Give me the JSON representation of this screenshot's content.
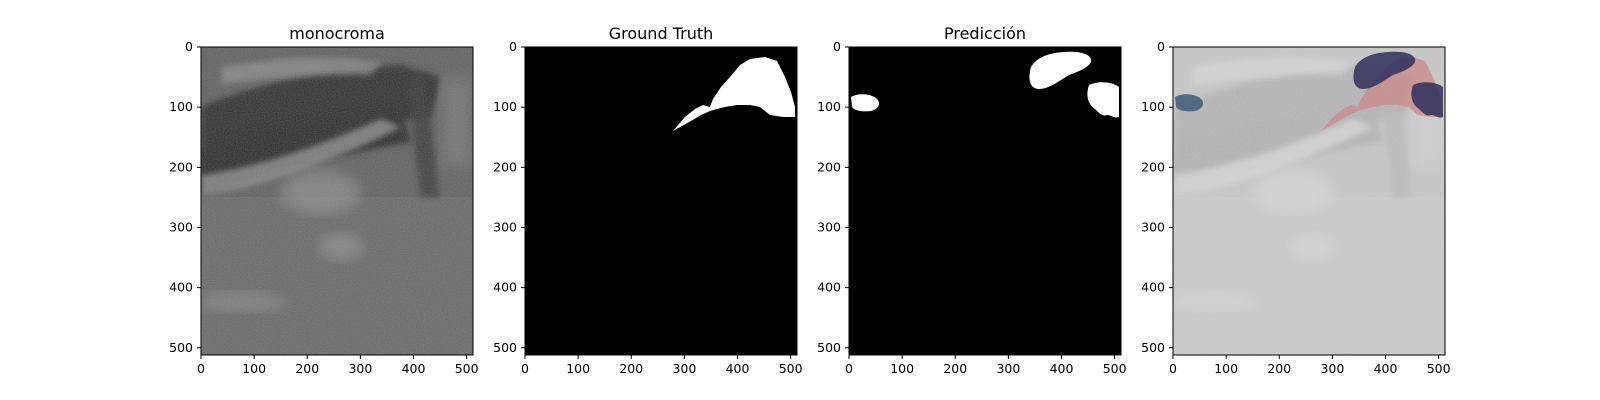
{
  "panels": [
    {
      "title": "monocroma",
      "kind": "ultrasound"
    },
    {
      "title": "Ground Truth",
      "kind": "mask-gt"
    },
    {
      "title": "Predicción",
      "kind": "mask-pred"
    },
    {
      "title": "",
      "kind": "overlay"
    }
  ],
  "axes": {
    "x_ticks": [
      "0",
      "100",
      "200",
      "300",
      "400",
      "500"
    ],
    "y_ticks": [
      "0",
      "100",
      "200",
      "300",
      "400",
      "500"
    ]
  },
  "colors": {
    "mask_fg": "#ffffff",
    "mask_bg": "#000000",
    "overlay_gt": "#c98a8a",
    "overlay_pred": "#3a3a66"
  }
}
